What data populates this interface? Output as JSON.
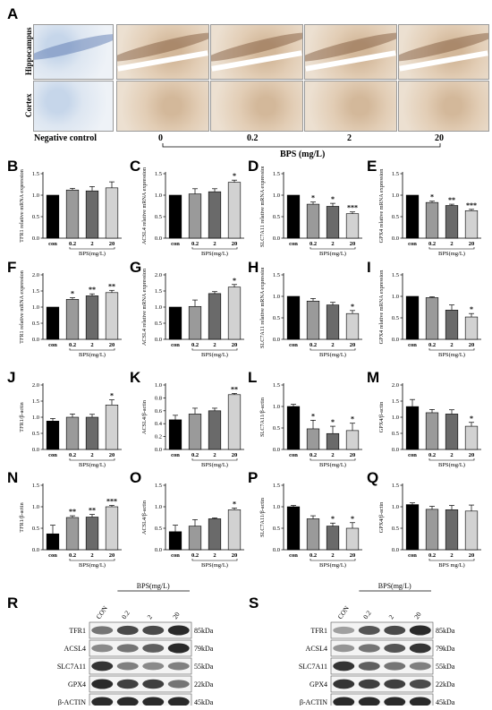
{
  "panel_a": {
    "letter": "A",
    "tissues": [
      "Hippocampus",
      "Cortex"
    ],
    "negative_label": "Negative control",
    "dose_labels": [
      "0",
      "0.2",
      "2",
      "20"
    ],
    "axis_title": "BPS (mg/L)"
  },
  "chart_data": [
    {
      "id": "B",
      "type": "bar",
      "categories": [
        "con",
        "0.2",
        "2",
        "20"
      ],
      "values": [
        1.0,
        1.12,
        1.1,
        1.17
      ],
      "errors": [
        0,
        0.04,
        0.1,
        0.14
      ],
      "sig": [
        "",
        "",
        "",
        ""
      ],
      "ylabel": "TFR1 relative mRNA expression",
      "xlabel": "BPS(mg/L)",
      "ylim": [
        0,
        1.5
      ],
      "ticks": [
        0.0,
        0.5,
        1.0,
        1.5
      ]
    },
    {
      "id": "C",
      "type": "bar",
      "categories": [
        "con",
        "0.2",
        "2",
        "20"
      ],
      "values": [
        1.0,
        1.03,
        1.08,
        1.3
      ],
      "errors": [
        0,
        0.12,
        0.07,
        0.05
      ],
      "sig": [
        "",
        "",
        "",
        "*"
      ],
      "ylabel": "ACSL4 relative mRNA expression",
      "xlabel": "BPS(mg/L)",
      "ylim": [
        0,
        1.5
      ],
      "ticks": [
        0.0,
        0.5,
        1.0,
        1.5
      ]
    },
    {
      "id": "D",
      "type": "bar",
      "categories": [
        "con",
        "0.2",
        "2",
        "20"
      ],
      "values": [
        1.0,
        0.79,
        0.74,
        0.57
      ],
      "errors": [
        0,
        0.05,
        0.07,
        0.04
      ],
      "sig": [
        "",
        "*",
        "*",
        "***"
      ],
      "ylabel": "SLC7A11 relative mRNA expression",
      "xlabel": "BPS(mg/L)",
      "ylim": [
        0,
        1.5
      ],
      "ticks": [
        0.0,
        0.5,
        1.0,
        1.5
      ]
    },
    {
      "id": "E",
      "type": "bar",
      "categories": [
        "con",
        "0.2",
        "2",
        "20"
      ],
      "values": [
        1.0,
        0.83,
        0.76,
        0.64
      ],
      "errors": [
        0,
        0.03,
        0.03,
        0.03
      ],
      "sig": [
        "",
        "*",
        "**",
        "***"
      ],
      "ylabel": "GPX4 relative mRNA expression",
      "xlabel": "BPS(mg/L)",
      "ylim": [
        0,
        1.5
      ],
      "ticks": [
        0.0,
        0.5,
        1.0,
        1.5
      ]
    },
    {
      "id": "F",
      "type": "bar",
      "categories": [
        "con",
        "0.2",
        "2",
        "20"
      ],
      "values": [
        1.0,
        1.24,
        1.35,
        1.45
      ],
      "errors": [
        0,
        0.05,
        0.06,
        0.07
      ],
      "sig": [
        "",
        "*",
        "**",
        "**"
      ],
      "ylabel": "TFR1 relative mRNA expression",
      "xlabel": "BPS(mg/L)",
      "ylim": [
        0,
        2.0
      ],
      "ticks": [
        0.0,
        0.5,
        1.0,
        1.5,
        2.0
      ]
    },
    {
      "id": "G",
      "type": "bar",
      "categories": [
        "con",
        "0.2",
        "2",
        "20"
      ],
      "values": [
        1.0,
        1.02,
        1.42,
        1.62
      ],
      "errors": [
        0,
        0.2,
        0.06,
        0.08
      ],
      "sig": [
        "",
        "",
        "",
        "*"
      ],
      "ylabel": "ACSL4 relative mRNA expression",
      "xlabel": "BPS(mg/L)",
      "ylim": [
        0,
        2.0
      ],
      "ticks": [
        0.0,
        0.5,
        1.0,
        1.5,
        2.0
      ]
    },
    {
      "id": "H",
      "type": "bar",
      "categories": [
        "con",
        "0.2",
        "2",
        "20"
      ],
      "values": [
        1.0,
        0.89,
        0.8,
        0.6
      ],
      "errors": [
        0,
        0.06,
        0.06,
        0.07
      ],
      "sig": [
        "",
        "",
        "",
        "*"
      ],
      "ylabel": "SLC7A11 relative mRNA expression",
      "xlabel": "BPS(mg/L)",
      "ylim": [
        0,
        1.5
      ],
      "ticks": [
        0.0,
        0.5,
        1.0,
        1.5
      ]
    },
    {
      "id": "I",
      "type": "bar",
      "categories": [
        "con",
        "0.2",
        "2",
        "20"
      ],
      "values": [
        1.0,
        0.97,
        0.68,
        0.52
      ],
      "errors": [
        0,
        0.02,
        0.12,
        0.08
      ],
      "sig": [
        "",
        "",
        "",
        "*"
      ],
      "ylabel": "GPX4 relative mRNA expression",
      "xlabel": "BPS(mg/L)",
      "ylim": [
        0,
        1.5
      ],
      "ticks": [
        0.0,
        0.5,
        1.0,
        1.5
      ]
    },
    {
      "id": "J",
      "type": "bar",
      "categories": [
        "con",
        "0.2",
        "2",
        "20"
      ],
      "values": [
        0.88,
        1.0,
        1.0,
        1.38
      ],
      "errors": [
        0.08,
        0.1,
        0.09,
        0.16
      ],
      "sig": [
        "",
        "",
        "",
        "*"
      ],
      "ylabel": "TFR1/β-actin",
      "xlabel": "BPS(mg/L)",
      "ylim": [
        0,
        2.0
      ],
      "ticks": [
        0.0,
        0.5,
        1.0,
        1.5,
        2.0
      ]
    },
    {
      "id": "K",
      "type": "bar",
      "categories": [
        "con",
        "0.2",
        "2",
        "20"
      ],
      "values": [
        0.46,
        0.55,
        0.6,
        0.85
      ],
      "errors": [
        0.07,
        0.09,
        0.04,
        0.02
      ],
      "sig": [
        "",
        "",
        "",
        "**"
      ],
      "ylabel": "ACSL4/β-actin",
      "xlabel": "BPS(mg/L)",
      "ylim": [
        0,
        1.0
      ],
      "ticks": [
        0.0,
        0.2,
        0.4,
        0.6,
        0.8,
        1.0
      ]
    },
    {
      "id": "L",
      "type": "bar",
      "categories": [
        "con",
        "0.2",
        "2",
        "20"
      ],
      "values": [
        1.0,
        0.48,
        0.37,
        0.44
      ],
      "errors": [
        0.05,
        0.2,
        0.17,
        0.17
      ],
      "sig": [
        "",
        "*",
        "*",
        "*"
      ],
      "ylabel": "SLC7A11/β-actin",
      "xlabel": "BPS(mg/L)",
      "ylim": [
        0,
        1.5
      ],
      "ticks": [
        0.0,
        0.5,
        1.0,
        1.5
      ]
    },
    {
      "id": "M",
      "type": "bar",
      "categories": [
        "con",
        "0.2",
        "2",
        "20"
      ],
      "values": [
        1.33,
        1.14,
        1.1,
        0.72
      ],
      "errors": [
        0.22,
        0.1,
        0.13,
        0.12
      ],
      "sig": [
        "",
        "",
        "",
        "*"
      ],
      "ylabel": "GPX4/β-actin",
      "xlabel": "BPS(mg/L)",
      "ylim": [
        0,
        2.0
      ],
      "ticks": [
        0.0,
        0.5,
        1.0,
        1.5,
        2.0
      ]
    },
    {
      "id": "N",
      "type": "bar",
      "categories": [
        "con",
        "0.2",
        "2",
        "20"
      ],
      "values": [
        0.37,
        0.75,
        0.76,
        1.0
      ],
      "errors": [
        0.2,
        0.04,
        0.06,
        0.03
      ],
      "sig": [
        "",
        "**",
        "**",
        "***"
      ],
      "ylabel": "TFR1/β-actin",
      "xlabel": "BPS(mg/L)",
      "ylim": [
        0,
        1.5
      ],
      "ticks": [
        0.0,
        0.5,
        1.0,
        1.5
      ]
    },
    {
      "id": "O",
      "type": "bar",
      "categories": [
        "con",
        "0.2",
        "2",
        "20"
      ],
      "values": [
        0.42,
        0.55,
        0.72,
        0.93
      ],
      "errors": [
        0.15,
        0.15,
        0.02,
        0.04
      ],
      "sig": [
        "",
        "",
        "",
        "*"
      ],
      "ylabel": "ACSL4/β-actin",
      "xlabel": "BPS(mg/L)",
      "ylim": [
        0,
        1.5
      ],
      "ticks": [
        0.0,
        0.5,
        1.0,
        1.5
      ]
    },
    {
      "id": "P",
      "type": "bar",
      "categories": [
        "con",
        "0.2",
        "2",
        "20"
      ],
      "values": [
        1.0,
        0.72,
        0.55,
        0.5
      ],
      "errors": [
        0.03,
        0.07,
        0.07,
        0.13
      ],
      "sig": [
        "",
        "",
        "*",
        "*"
      ],
      "ylabel": "SLC7A11/β-actin",
      "xlabel": "BPS(mg/L)",
      "ylim": [
        0,
        1.5
      ],
      "ticks": [
        0.0,
        0.5,
        1.0,
        1.5
      ]
    },
    {
      "id": "Q",
      "type": "bar",
      "categories": [
        "con",
        "0.2",
        "2",
        "20"
      ],
      "values": [
        1.05,
        0.94,
        0.93,
        0.9
      ],
      "errors": [
        0.04,
        0.07,
        0.1,
        0.14
      ],
      "sig": [
        "",
        "",
        "",
        ""
      ],
      "ylabel": "GPX4/β-actin",
      "xlabel": "BPS mg/L)",
      "ylim": [
        0,
        1.5
      ],
      "ticks": [
        0.0,
        0.5,
        1.0,
        1.5
      ]
    }
  ],
  "blots": [
    {
      "id": "R",
      "group_label": "BPS(mg/L)",
      "lanes": [
        "CON",
        "0.2",
        "2",
        "20"
      ],
      "rows": [
        {
          "protein": "TFR1",
          "size": "85kDa",
          "intensity": [
            0.55,
            0.75,
            0.75,
            0.9
          ]
        },
        {
          "protein": "ACSL4",
          "size": "79kDa",
          "intensity": [
            0.45,
            0.55,
            0.65,
            0.9
          ]
        },
        {
          "protein": "SLC7A11",
          "size": "55kDa",
          "intensity": [
            0.85,
            0.5,
            0.45,
            0.5
          ]
        },
        {
          "protein": "GPX4",
          "size": "22kDa",
          "intensity": [
            0.9,
            0.8,
            0.8,
            0.55
          ]
        },
        {
          "protein": "β-ACTIN",
          "size": "45kDa",
          "intensity": [
            0.9,
            0.9,
            0.9,
            0.9
          ]
        }
      ]
    },
    {
      "id": "S",
      "group_label": "BPS(mg/L)",
      "lanes": [
        "CON",
        "0.2",
        "2",
        "20"
      ],
      "rows": [
        {
          "protein": "TFR1",
          "size": "85kDa",
          "intensity": [
            0.35,
            0.7,
            0.75,
            0.9
          ]
        },
        {
          "protein": "ACSL4",
          "size": "79kDa",
          "intensity": [
            0.4,
            0.55,
            0.7,
            0.85
          ]
        },
        {
          "protein": "SLC7A11",
          "size": "55kDa",
          "intensity": [
            0.85,
            0.65,
            0.55,
            0.5
          ]
        },
        {
          "protein": "GPX4",
          "size": "22kDa",
          "intensity": [
            0.85,
            0.8,
            0.8,
            0.75
          ]
        },
        {
          "protein": "β-ACTIN",
          "size": "45kDa",
          "intensity": [
            0.9,
            0.9,
            0.9,
            0.9
          ]
        }
      ]
    }
  ]
}
